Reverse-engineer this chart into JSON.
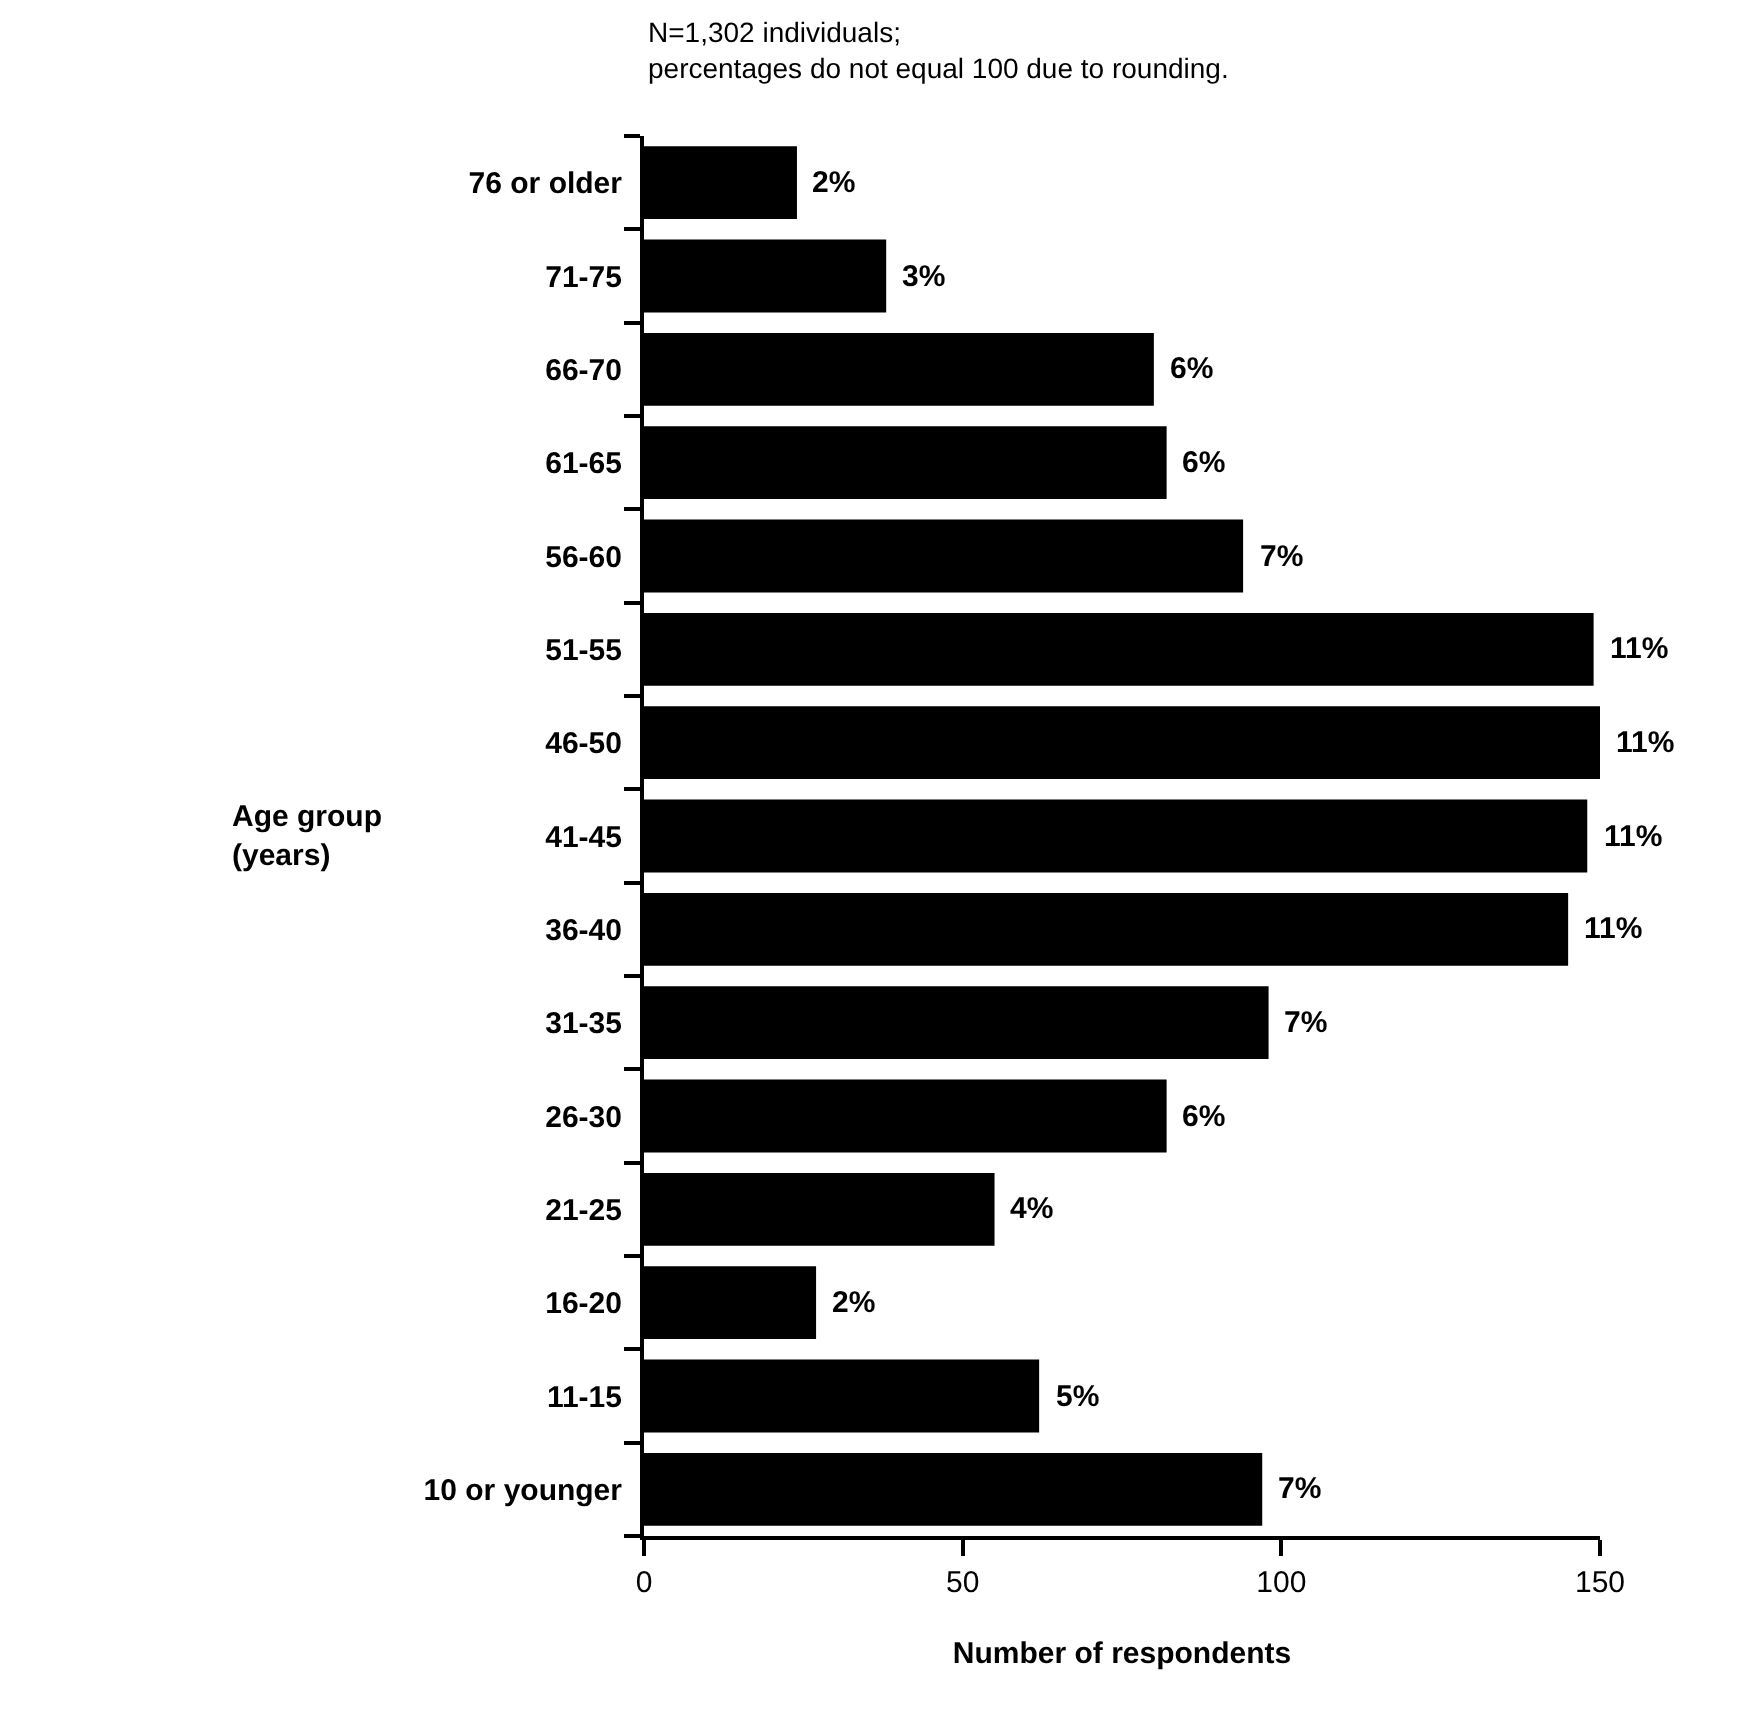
{
  "chart_data": {
    "type": "bar",
    "orientation": "horizontal",
    "annotations": [
      "N=1,302 individuals;",
      "percentages do not equal 100 due to rounding.",
      {
        "text": "2%",
        "x": 24,
        "y": "76 or older"
      },
      {
        "text": "3%",
        "x": 38,
        "y": "71-75"
      },
      {
        "text": "6%",
        "x": 80,
        "y": "66-70"
      },
      {
        "text": "6%",
        "x": 82,
        "y": "61-65"
      },
      {
        "text": "7%",
        "x": 94,
        "y": "56-60"
      },
      {
        "text": "11%",
        "x": 149,
        "y": "51-55"
      },
      {
        "text": "11%",
        "x": 150,
        "y": "46-50"
      },
      {
        "text": "11%",
        "x": 148,
        "y": "41-45"
      },
      {
        "text": "11%",
        "x": 145,
        "y": "36-40"
      },
      {
        "text": "7%",
        "x": 98,
        "y": "31-35"
      },
      {
        "text": "6%",
        "x": 82,
        "y": "26-30"
      },
      {
        "text": "4%",
        "x": 55,
        "y": "21-25"
      },
      {
        "text": "2%",
        "x": 27,
        "y": "16-20"
      },
      {
        "text": "5%",
        "x": 62,
        "y": "11-15"
      },
      {
        "text": "7%",
        "x": 97,
        "y": "10 or younger"
      }
    ],
    "xlabel": "Number of respondents",
    "ylabel": "Age group\n(years)",
    "categories": [
      "76 or older",
      "71-75",
      "66-70",
      "61-65",
      "56-60",
      "51-55",
      "46-50",
      "41-45",
      "36-40",
      "31-35",
      "26-30",
      "21-25",
      "16-20",
      "11-15",
      "10 or younger"
    ],
    "values": [
      24,
      38,
      80,
      82,
      94,
      149,
      150,
      148,
      145,
      98,
      82,
      55,
      27,
      62,
      97
    ],
    "color": "#000000",
    "xlim": [
      0,
      150
    ],
    "xticks": [
      0,
      50,
      100,
      150
    ]
  }
}
